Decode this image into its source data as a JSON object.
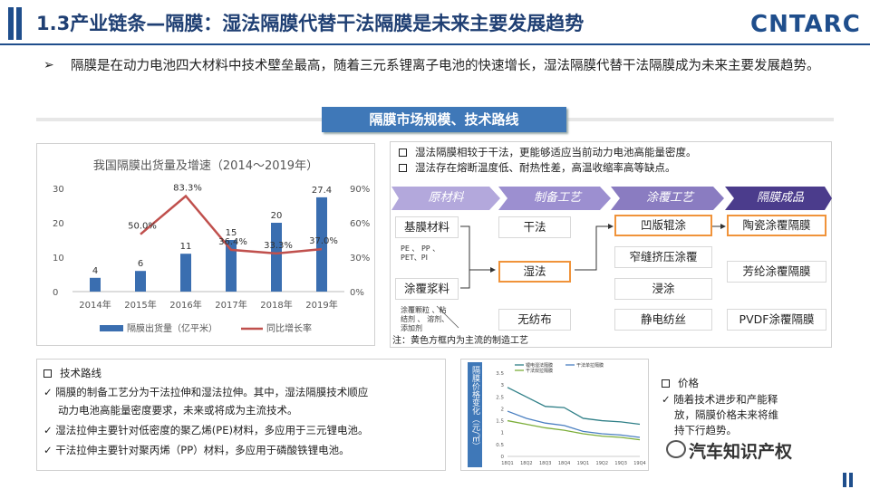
{
  "header": {
    "title": "1.3产业链条—隔膜：湿法隔膜代替干法隔膜是未来主要发展趋势",
    "logo": "CNTARC"
  },
  "intro": {
    "bullet": "➢",
    "text": "隔膜是在动力电池四大材料中技术壁垒最高，随着三元系锂离子电池的快速增长，湿法隔膜代替干法隔膜成为未来主要发展趋势。"
  },
  "section_tab": "隔膜市场规模、技术路线",
  "chart_data": [
    {
      "type": "bar",
      "title": "我国隔膜出货量及增速（2014～2019年）",
      "categories": [
        "2014年",
        "2015年",
        "2016年",
        "2017年",
        "2018年",
        "2019年"
      ],
      "series": [
        {
          "name": "隔膜出货量（亿平米）",
          "type": "bar",
          "axis": "left",
          "values": [
            4,
            6,
            11,
            15,
            20,
            27.4
          ],
          "labels": [
            "4",
            "6",
            "11",
            "15",
            "20",
            "27.4"
          ],
          "color": "#3a6eb0"
        },
        {
          "name": "同比增长率",
          "type": "line",
          "axis": "right",
          "values": [
            null,
            50.0,
            83.3,
            36.4,
            33.3,
            37.0
          ],
          "labels": [
            "",
            "50.0%",
            "83.3%",
            "36.4%",
            "33.3%",
            "37.0%"
          ],
          "color": "#c0504d"
        }
      ],
      "ylim_left": [
        0,
        30
      ],
      "yticks_left": [
        "0",
        "10",
        "20",
        "30"
      ],
      "ylim_right": [
        0,
        90
      ],
      "yticks_right": [
        "0%",
        "30%",
        "60%",
        "90%"
      ],
      "legend": "bottom"
    },
    {
      "type": "line",
      "ylabel": "隔膜价格变化（元/㎡）",
      "categories": [
        "18Q1",
        "18Q2",
        "18Q3",
        "18Q4",
        "19Q1",
        "19Q2",
        "19Q3",
        "19Q4"
      ],
      "series": [
        {
          "name": "锂电湿法隔膜",
          "values": [
            2.9,
            2.5,
            2.1,
            2.05,
            1.6,
            1.5,
            1.45,
            1.35
          ],
          "color": "#2f7f87"
        },
        {
          "name": "干法单拉隔膜",
          "values": [
            1.9,
            1.6,
            1.4,
            1.3,
            1.05,
            0.95,
            0.9,
            0.8
          ],
          "color": "#4a7fc1"
        },
        {
          "name": "干法双拉隔膜",
          "values": [
            1.5,
            1.35,
            1.2,
            1.1,
            0.95,
            0.85,
            0.8,
            0.7
          ],
          "color": "#7cae3a"
        }
      ],
      "yticks": [
        "0",
        "0.5",
        "1",
        "1.5",
        "2",
        "2.5",
        "3",
        "3.5"
      ],
      "ylim": [
        0,
        3.5
      ]
    }
  ],
  "process": {
    "notes": [
      "湿法隔膜相较于干法，更能够适应当前动力电池高能量密度。",
      "湿法存在熔断温度低、耐热性差，高温收缩率高等缺点。"
    ],
    "stages": [
      "原材料",
      "制备工艺",
      "涂覆工艺",
      "隔膜成品"
    ],
    "raw": [
      "基膜材料",
      "涂覆浆料"
    ],
    "raw_sub1": [
      "PE 、 PP 、",
      "PET、PI"
    ],
    "raw_sub2": [
      "涂覆颗粒 、粘",
      "结剂 、 溶剂、",
      "添加剂"
    ],
    "prep": [
      "干法",
      "湿法",
      "无纺布"
    ],
    "coat": [
      "凹版辊涂",
      "窄缝挤压涂覆",
      "浸涂",
      "静电纺丝"
    ],
    "product": [
      "陶瓷涂覆隔膜",
      "芳纶涂覆隔膜",
      "PVDF涂覆隔膜"
    ],
    "footnote": "注：黄色方框内为主流的制造工艺"
  },
  "tech": {
    "heading": "技术路线",
    "items": [
      "隔膜的制备工艺分为干法拉伸和湿法拉伸。其中，湿法隔膜技术顺应",
      "动力电池高能量密度要求，未来或将成为主流技术。",
      "湿法拉伸主要针对低密度的聚乙烯(PE)材料，多应用于三元锂电池。",
      "干法拉伸主要针对聚丙烯（PP）材料，多应用于磷酸铁锂电池。"
    ]
  },
  "price": {
    "heading": "价格",
    "items": [
      "随着技术进步和产能释",
      "放，隔膜价格未来将维",
      "持下行趋势。"
    ]
  },
  "watermark": "汽车知识产权",
  "colors": {
    "primary": "#1f4e8c",
    "accent_orange": "#f0933a",
    "stage_purple": "#8a7cc1",
    "stage_dark": "#4b3c8c"
  }
}
